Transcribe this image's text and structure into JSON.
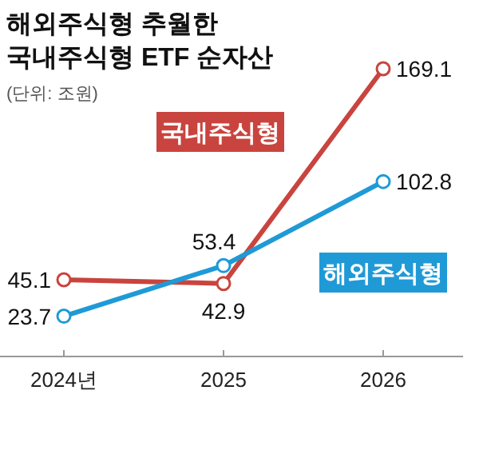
{
  "chart_data": {
    "type": "line",
    "title": "해외주식형 추월한\n국내주식형 ETF 순자산",
    "subtitle": "(단위: 조원)",
    "categories": [
      "2024년",
      "2025",
      "2026"
    ],
    "series": [
      {
        "name": "국내주식형",
        "color": "#c9443e",
        "values": [
          45.1,
          42.9,
          169.1
        ]
      },
      {
        "name": "해외주식형",
        "color": "#1f9ad6",
        "values": [
          23.7,
          53.4,
          102.8
        ]
      }
    ],
    "data_labels": true,
    "marker": "circle",
    "line_style": "solid",
    "legend": false,
    "grid": false
  }
}
